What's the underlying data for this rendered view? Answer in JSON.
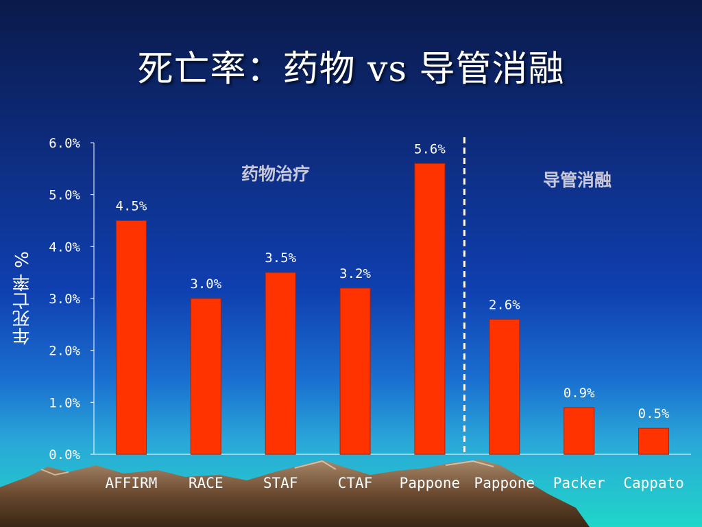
{
  "slide": {
    "title": "死亡率：药物 vs 导管消融"
  },
  "colors": {
    "bar": "#ff3300",
    "axis": "#ffffff",
    "group_label": "#c8c8d8",
    "divider": "#ffffff"
  },
  "chart_data": {
    "type": "bar",
    "ylabel": "年死亡率 %",
    "ylim": [
      0,
      6
    ],
    "yticks": [
      "0.0%",
      "1.0%",
      "2.0%",
      "3.0%",
      "4.0%",
      "5.0%",
      "6.0%"
    ],
    "categories": [
      "AFFIRM",
      "RACE",
      "STAF",
      "CTAF",
      "Pappone",
      "Pappone",
      "Packer",
      "Cappato"
    ],
    "values": [
      4.5,
      3.0,
      3.5,
      3.2,
      5.6,
      2.6,
      0.9,
      0.5
    ],
    "data_labels": [
      "4.5%",
      "3.0%",
      "3.5%",
      "3.2%",
      "5.6%",
      "2.6%",
      "0.9%",
      "0.5%"
    ],
    "groups": [
      {
        "label": "药物治疗",
        "categories": [
          0,
          1,
          2,
          3,
          4
        ]
      },
      {
        "label": "导管消融",
        "categories": [
          5,
          6,
          7
        ]
      }
    ],
    "grid": false
  }
}
